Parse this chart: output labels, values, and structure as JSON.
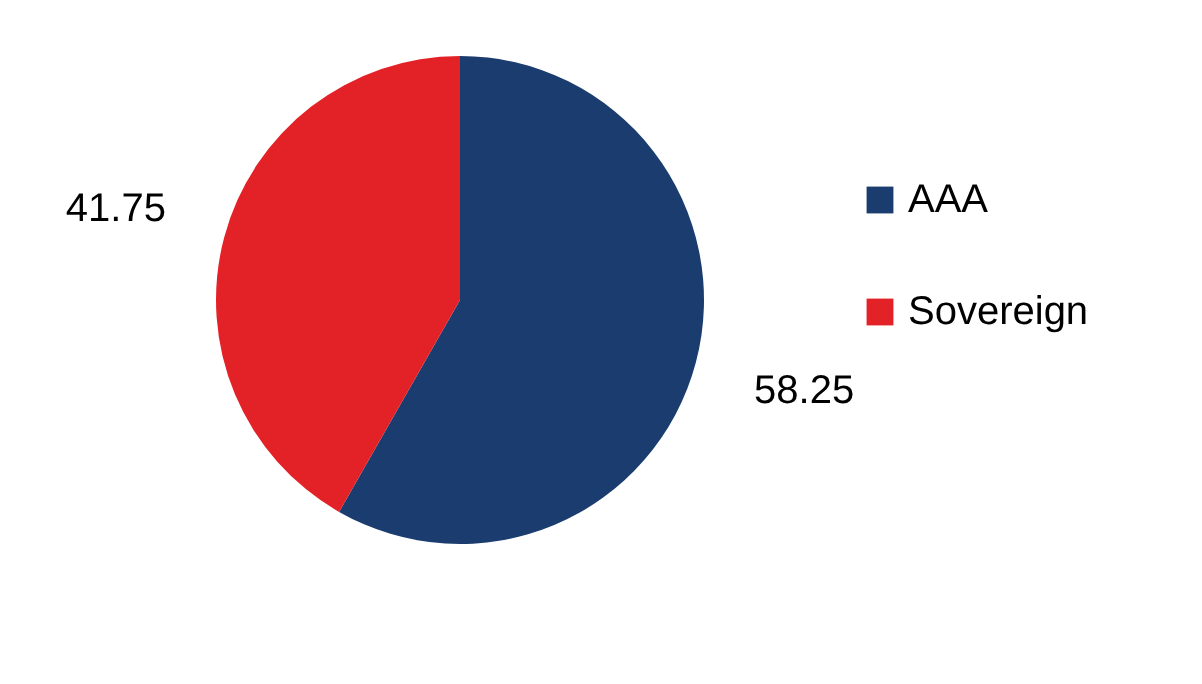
{
  "chart_data": {
    "type": "pie",
    "categories": [
      "AAA",
      "Sovereign"
    ],
    "values": [
      58.25,
      41.75
    ],
    "colors": [
      "#1a3c6e",
      "#e32228"
    ],
    "data_labels": true,
    "legend": "right"
  }
}
